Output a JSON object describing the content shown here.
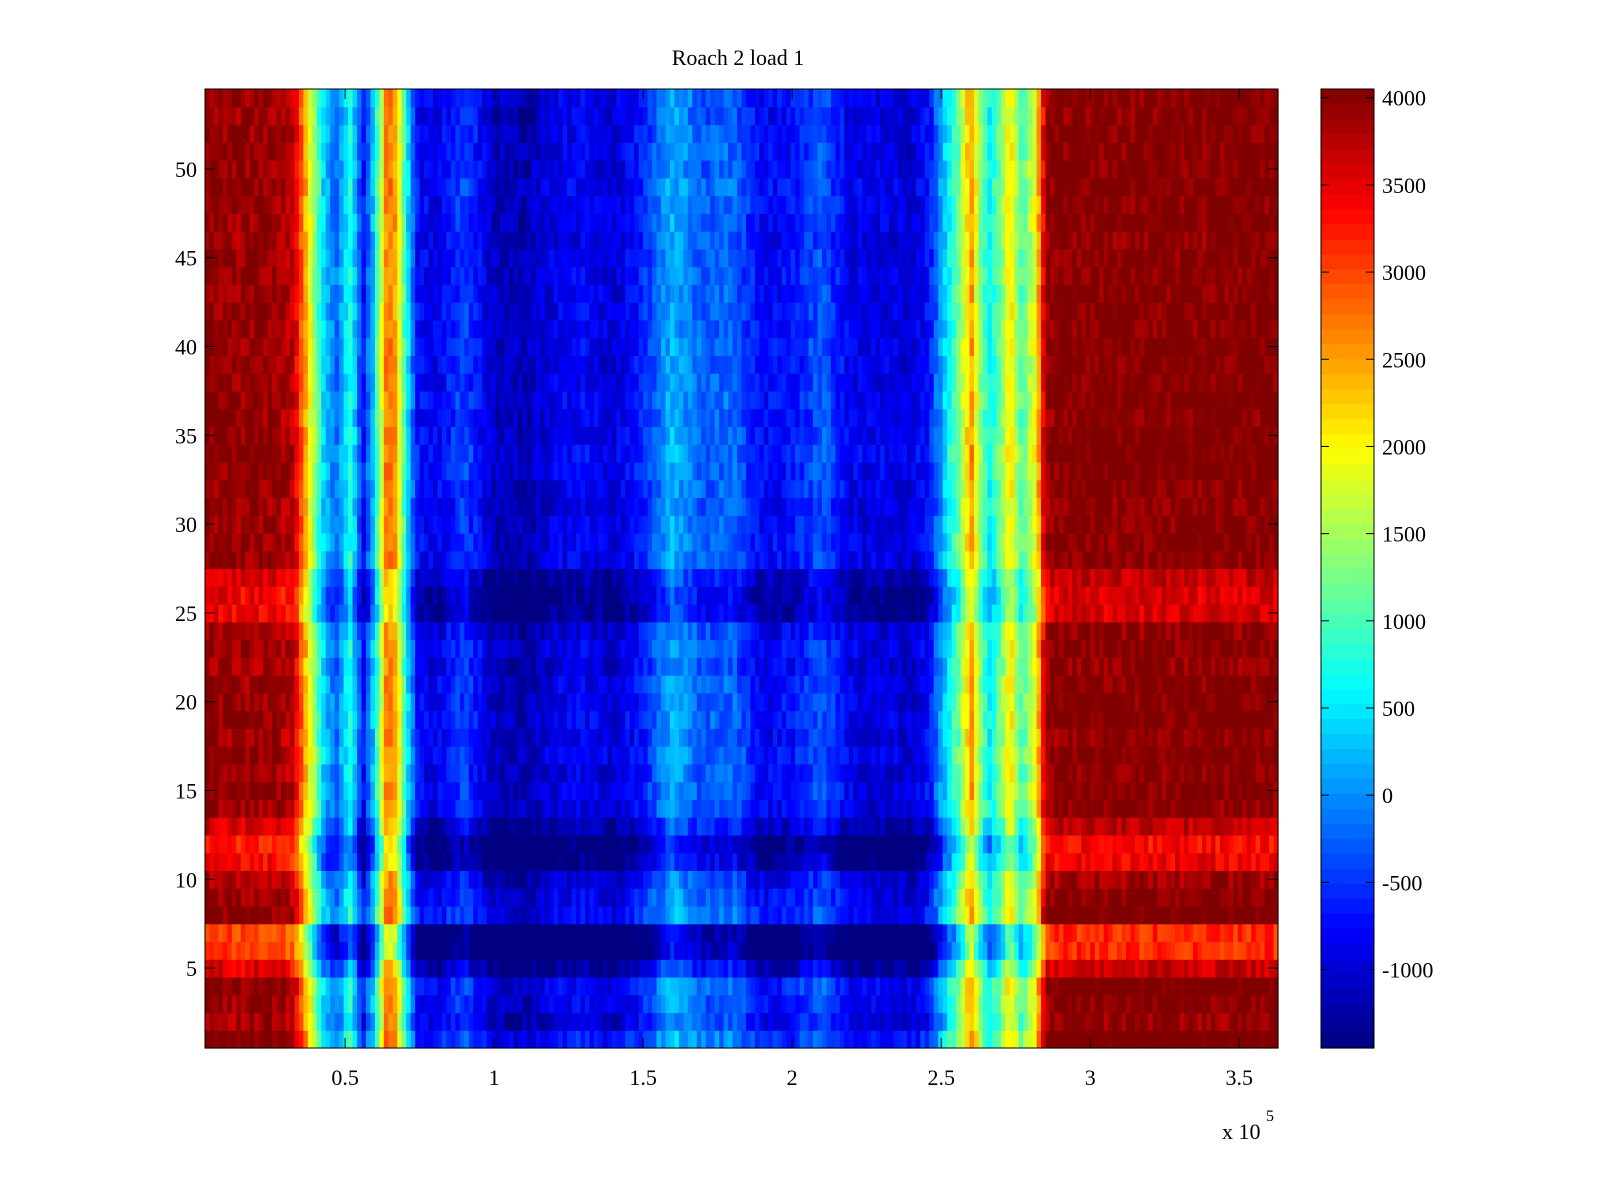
{
  "chart_data": {
    "type": "heatmap",
    "title": "Roach 2 load 1",
    "xlabel": "",
    "ylabel": "",
    "x_multiplier_label": "x 10",
    "x_multiplier_exponent": "5",
    "xlim": [
      0.03,
      3.63
    ],
    "ylim": [
      0.5,
      54.5
    ],
    "x_ticks": [
      0.5,
      1,
      1.5,
      2,
      2.5,
      3,
      3.5
    ],
    "x_tick_labels": [
      "0.5",
      "1",
      "1.5",
      "2",
      "2.5",
      "3",
      "3.5"
    ],
    "y_ticks": [
      5,
      10,
      15,
      20,
      25,
      30,
      35,
      40,
      45,
      50
    ],
    "y_tick_labels": [
      "5",
      "10",
      "15",
      "20",
      "25",
      "30",
      "35",
      "40",
      "45",
      "50"
    ],
    "rows": 54,
    "colormap": "jet",
    "clim": [
      -1450,
      4050
    ],
    "colorbar": {
      "ticks": [
        -1000,
        -500,
        0,
        500,
        1000,
        1500,
        2000,
        2500,
        3000,
        3500,
        4000
      ],
      "tick_labels": [
        "-1000",
        "-500",
        "0",
        "500",
        "1000",
        "1500",
        "2000",
        "2500",
        "3000",
        "3500",
        "4000"
      ]
    },
    "column_profile": {
      "x": [
        0.03,
        0.15,
        0.25,
        0.33,
        0.38,
        0.43,
        0.47,
        0.52,
        0.56,
        0.6,
        0.64,
        0.67,
        0.7,
        0.74,
        0.8,
        0.9,
        1.0,
        1.1,
        1.2,
        1.3,
        1.4,
        1.5,
        1.6,
        1.7,
        1.8,
        1.9,
        2.0,
        2.1,
        2.2,
        2.3,
        2.4,
        2.46,
        2.52,
        2.56,
        2.6,
        2.63,
        2.66,
        2.7,
        2.73,
        2.77,
        2.82,
        2.85,
        2.9,
        3.2,
        3.5,
        3.63
      ],
      "values": [
        4000,
        3900,
        3950,
        3700,
        2000,
        300,
        -200,
        800,
        -800,
        500,
        2800,
        2500,
        900,
        -700,
        -900,
        -400,
        -1100,
        -1200,
        -900,
        -800,
        -1000,
        -600,
        200,
        -300,
        -200,
        -800,
        -700,
        -300,
        -900,
        -900,
        -1000,
        -700,
        500,
        1200,
        2600,
        1400,
        600,
        1200,
        2200,
        1000,
        2000,
        3900,
        4050,
        4050,
        4050,
        4050
      ]
    },
    "row_offsets": {
      "rows": [
        1,
        2,
        3,
        4,
        5,
        6,
        7,
        8,
        9,
        10,
        11,
        12,
        13,
        14,
        15,
        16,
        17,
        18,
        19,
        20,
        21,
        22,
        23,
        24,
        25,
        26,
        27,
        28,
        29,
        30,
        31,
        32,
        33,
        34,
        35,
        36,
        37,
        38,
        39,
        40,
        41,
        42,
        43,
        44,
        45,
        46,
        47,
        48,
        49,
        50,
        51,
        52,
        53,
        54
      ],
      "values": [
        200,
        -100,
        0,
        100,
        -400,
        -900,
        -900,
        100,
        0,
        -150,
        -600,
        -700,
        -350,
        -50,
        0,
        -50,
        50,
        -50,
        50,
        0,
        0,
        -100,
        0,
        -100,
        -500,
        -500,
        -350,
        0,
        0,
        0,
        -50,
        0,
        50,
        100,
        50,
        0,
        50,
        0,
        0,
        50,
        0,
        0,
        0,
        0,
        0,
        -50,
        0,
        0,
        50,
        0,
        0,
        0,
        -50,
        0
      ]
    }
  }
}
